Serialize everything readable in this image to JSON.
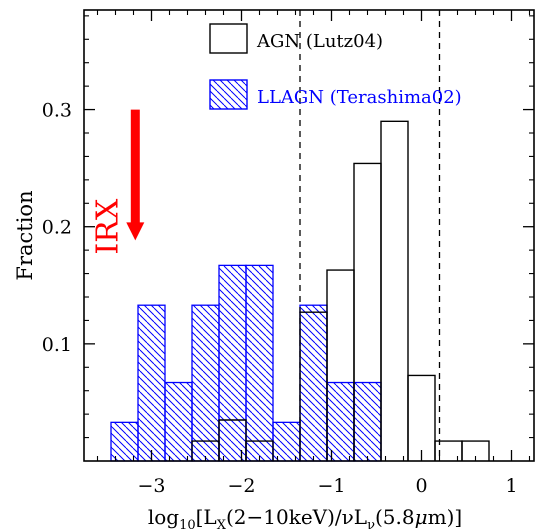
{
  "chart_data": {
    "type": "histogram",
    "xlabel_parts": {
      "pre": "log",
      "sub": "10",
      "mid1": "[L",
      "sub2": "X",
      "mid2": "(2−10keV)/νL",
      "sub3": "ν",
      "mid3": "(5.8",
      "mu": "μ",
      "post": "m)]"
    },
    "ylabel": "Fraction",
    "xlim": [
      -3.75,
      1.25
    ],
    "ylim": [
      0,
      0.385
    ],
    "xticks": [
      -3,
      -2,
      -1,
      0,
      1
    ],
    "xtick_labels": [
      "−3",
      "−2",
      "−1",
      "0",
      "1"
    ],
    "yticks": [
      0.1,
      0.2,
      0.3
    ],
    "ytick_labels": [
      "0.1",
      "0.2",
      "0.3"
    ],
    "vlines": [
      -1.35,
      0.2
    ],
    "bin_width": 0.3,
    "series": [
      {
        "name": "AGN (Lutz04)",
        "style": "step",
        "color": "#000000",
        "bins": [
          {
            "x0": -2.55,
            "x1": -2.25,
            "y": 0.017
          },
          {
            "x0": -2.25,
            "x1": -1.95,
            "y": 0.035
          },
          {
            "x0": -1.95,
            "x1": -1.65,
            "y": 0.017
          },
          {
            "x0": -1.35,
            "x1": -1.05,
            "y": 0.127
          },
          {
            "x0": -1.05,
            "x1": -0.75,
            "y": 0.163
          },
          {
            "x0": -0.75,
            "x1": -0.45,
            "y": 0.254
          },
          {
            "x0": -0.45,
            "x1": -0.15,
            "y": 0.29
          },
          {
            "x0": -0.15,
            "x1": 0.15,
            "y": 0.073
          },
          {
            "x0": 0.15,
            "x1": 0.45,
            "y": 0.017
          },
          {
            "x0": 0.45,
            "x1": 0.75,
            "y": 0.017
          }
        ]
      },
      {
        "name": "LLAGN (Terashima02)",
        "style": "hatched",
        "color": "#0000ff",
        "bins": [
          {
            "x0": -3.45,
            "x1": -3.15,
            "y": 0.033
          },
          {
            "x0": -3.15,
            "x1": -2.85,
            "y": 0.133
          },
          {
            "x0": -2.85,
            "x1": -2.55,
            "y": 0.067
          },
          {
            "x0": -2.55,
            "x1": -2.25,
            "y": 0.133
          },
          {
            "x0": -2.25,
            "x1": -1.95,
            "y": 0.167
          },
          {
            "x0": -1.95,
            "x1": -1.65,
            "y": 0.167
          },
          {
            "x0": -1.65,
            "x1": -1.35,
            "y": 0.033
          },
          {
            "x0": -1.35,
            "x1": -1.05,
            "y": 0.133
          },
          {
            "x0": -1.05,
            "x1": -0.75,
            "y": 0.067
          },
          {
            "x0": -0.75,
            "x1": -0.45,
            "y": 0.067
          }
        ]
      }
    ],
    "annotations": [
      {
        "text": "IRX",
        "color": "#ff0000",
        "arrow_x": -3.18,
        "arrow_from_y": 0.3,
        "arrow_to_y": 0.19
      }
    ],
    "legend_position": "top-right"
  }
}
